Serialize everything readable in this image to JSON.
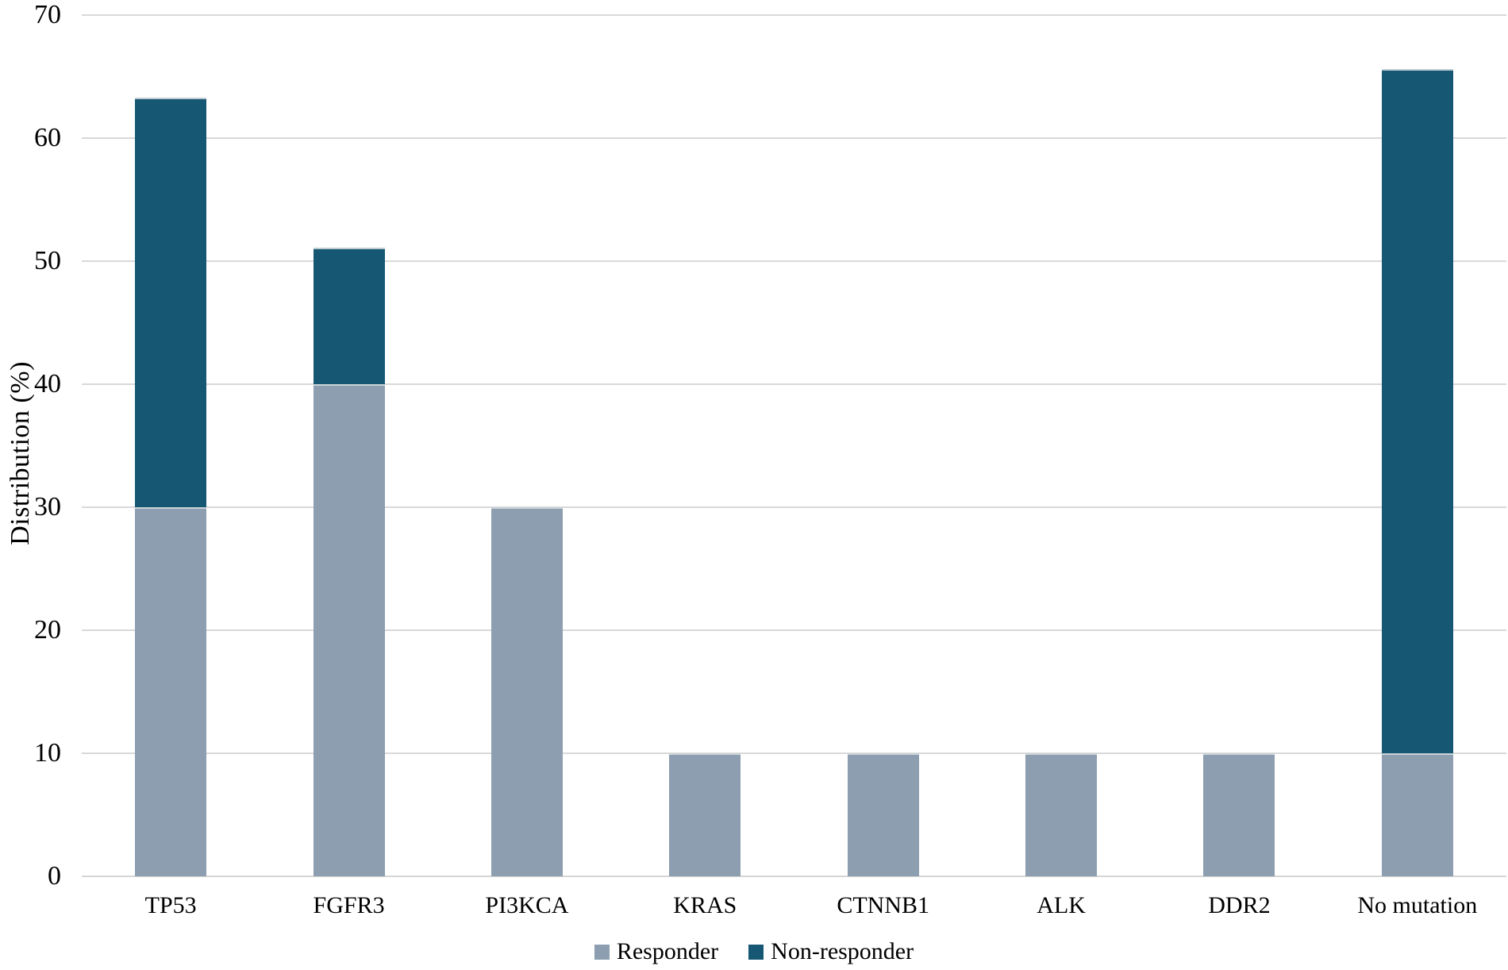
{
  "chart_data": {
    "type": "bar",
    "stacked": true,
    "title": "",
    "xlabel": "",
    "ylabel": "Distribution (%)",
    "ylim": [
      0,
      70
    ],
    "ytick_step": 10,
    "yticks": [
      "0",
      "10",
      "20",
      "30",
      "40",
      "50",
      "60",
      "70"
    ],
    "grid": true,
    "legend_position": "bottom",
    "categories": [
      "TP53",
      "FGFR3",
      "PI3KCA",
      "KRAS",
      "CTNNB1",
      "ALK",
      "DDR2",
      "No mutation"
    ],
    "series": [
      {
        "name": "Responder",
        "color": "#8C9EB0",
        "values": [
          30,
          40,
          30,
          10,
          10,
          10,
          10,
          10
        ]
      },
      {
        "name": "Non-responder",
        "color": "#165874",
        "values": [
          33.3,
          11.1,
          0,
          0,
          0,
          0,
          0,
          55.6
        ]
      }
    ],
    "stack_totals": [
      63.3,
      51.1,
      30,
      10,
      10,
      10,
      10,
      65.6
    ],
    "colors": {
      "grid": "#d9d9d9",
      "text": "#000000",
      "background": "#ffffff"
    }
  }
}
